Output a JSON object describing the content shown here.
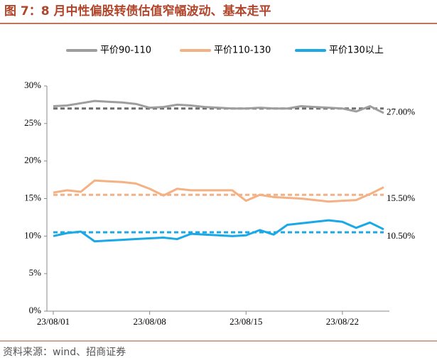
{
  "chart_data": {
    "type": "line",
    "title": "图 7：8 月中性偏股转债估值窄幅波动、基本走平",
    "source": "资料来源：wind、招商证券",
    "categories": [
      "23/08/01",
      null,
      null,
      null,
      null,
      null,
      null,
      "23/08/08",
      null,
      null,
      null,
      null,
      null,
      null,
      "23/08/15",
      null,
      null,
      null,
      null,
      null,
      null,
      "23/08/22",
      null,
      null,
      null
    ],
    "series": [
      {
        "name": "平价90-110",
        "color": "#9e9e9e",
        "values": [
          27.3,
          27.4,
          27.7,
          28.0,
          27.9,
          27.8,
          27.6,
          27.1,
          27.2,
          27.5,
          27.4,
          27.2,
          27.1,
          27.0,
          27.0,
          27.1,
          27.0,
          27.0,
          27.3,
          27.2,
          27.1,
          27.0,
          26.6,
          27.3,
          26.4
        ]
      },
      {
        "name": "平价110-130",
        "color": "#f4b183",
        "values": [
          15.8,
          16.1,
          15.9,
          17.4,
          17.3,
          17.2,
          17.0,
          16.3,
          15.4,
          16.3,
          16.1,
          16.1,
          16.1,
          16.1,
          14.7,
          15.5,
          15.2,
          15.1,
          15.0,
          14.8,
          14.6,
          14.7,
          14.8,
          15.6,
          16.5
        ]
      },
      {
        "name": "平价130以上",
        "color": "#1aa9e6",
        "values": [
          10.0,
          10.4,
          10.6,
          9.3,
          9.4,
          9.5,
          9.6,
          9.7,
          9.8,
          9.6,
          10.3,
          10.2,
          10.1,
          10.0,
          10.1,
          10.8,
          10.2,
          11.5,
          11.7,
          11.9,
          12.1,
          11.9,
          11.1,
          11.8,
          10.9
        ]
      }
    ],
    "reference_lines": [
      {
        "value": 27,
        "label": "27.00%",
        "color": "#6e6e6e"
      },
      {
        "value": 15.5,
        "label": "15.50%",
        "color": "#f4b183"
      },
      {
        "value": 10.5,
        "label": "10.50%",
        "color": "#1aa9e6"
      }
    ],
    "ylim": [
      0,
      30
    ],
    "yticks": [
      {
        "value": 0,
        "label": "0%"
      },
      {
        "value": 5,
        "label": "5%"
      },
      {
        "value": 10,
        "label": "10%"
      },
      {
        "value": 15,
        "label": "15%"
      },
      {
        "value": 20,
        "label": "20%"
      },
      {
        "value": 25,
        "label": "25%"
      },
      {
        "value": 30,
        "label": "30%"
      }
    ],
    "legend": "top"
  }
}
